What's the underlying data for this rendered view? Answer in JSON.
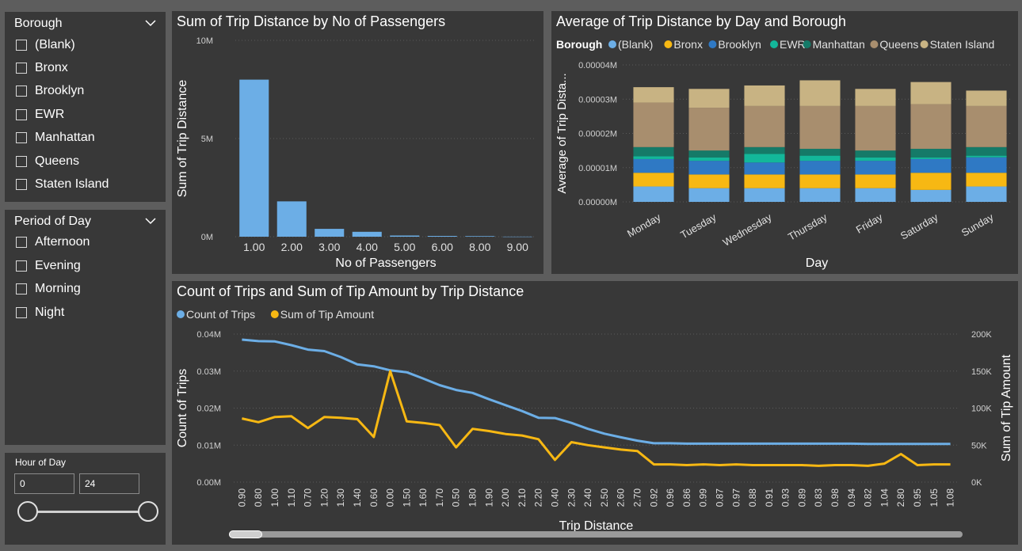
{
  "borough_slicer": {
    "title": "Borough",
    "items": [
      "(Blank)",
      "Bronx",
      "Brooklyn",
      "EWR",
      "Manhattan",
      "Queens",
      "Staten Island"
    ]
  },
  "period_slicer": {
    "title": "Period of Day",
    "items": [
      "Afternoon",
      "Evening",
      "Morning",
      "Night"
    ]
  },
  "hour_slicer": {
    "title": "Hour of Day",
    "min_value": "0",
    "max_value": "24",
    "range": [
      0,
      24
    ]
  },
  "chart_data": [
    {
      "type": "bar",
      "title": "Sum of Trip Distance by No of Passengers",
      "xlabel": "No of Passengers",
      "ylabel": "Sum of Trip Distance",
      "categories": [
        "1.00",
        "2.00",
        "3.00",
        "4.00",
        "5.00",
        "6.00",
        "8.00",
        "9.00"
      ],
      "values": [
        8000000,
        1800000,
        400000,
        250000,
        60000,
        40000,
        30000,
        5000
      ],
      "y_ticks": [
        "10M",
        "5M",
        "0M"
      ],
      "ylim": [
        0,
        10000000
      ],
      "color": "#6caee6",
      "grid": true
    },
    {
      "type": "bar",
      "stacked": true,
      "title": "Average of Trip Distance by Day and Borough",
      "xlabel": "Day",
      "ylabel": "Average of Trip Dista...",
      "legend_title": "Borough",
      "legend_position": "top-left",
      "categories": [
        "Monday",
        "Tuesday",
        "Wednesday",
        "Thursday",
        "Friday",
        "Saturday",
        "Sunday"
      ],
      "y_ticks": [
        "0.00004M",
        "0.00003M",
        "0.00002M",
        "0.00001M",
        "0.00000M"
      ],
      "ylim": [
        0,
        4e-05
      ],
      "series": [
        {
          "name": "(Blank)",
          "color": "#6caee6",
          "values": [
            4.5e-06,
            4e-06,
            4e-06,
            4e-06,
            4e-06,
            3.5e-06,
            4.5e-06
          ]
        },
        {
          "name": "Bronx",
          "color": "#f7b813",
          "values": [
            4e-06,
            4e-06,
            4e-06,
            4e-06,
            4e-06,
            5e-06,
            4e-06
          ]
        },
        {
          "name": "Brooklyn",
          "color": "#2f79c4",
          "values": [
            4e-06,
            4e-06,
            3.5e-06,
            4e-06,
            4e-06,
            4e-06,
            4.5e-06
          ]
        },
        {
          "name": "EWR",
          "color": "#13b79a",
          "values": [
            8e-07,
            1e-06,
            2.5e-06,
            1.5e-06,
            1e-06,
            5e-07,
            5e-07
          ]
        },
        {
          "name": "Manhattan",
          "color": "#157a68",
          "values": [
            2.7e-06,
            2e-06,
            2e-06,
            2e-06,
            2e-06,
            2.5e-06,
            2.5e-06
          ]
        },
        {
          "name": "Queens",
          "color": "#a88e6e",
          "values": [
            1.3e-05,
            1.25e-05,
            1.2e-05,
            1.25e-05,
            1.3e-05,
            1.3e-05,
            1.2e-05
          ]
        },
        {
          "name": "Staten Island",
          "color": "#c8b383",
          "values": [
            4.5e-06,
            5.5e-06,
            6e-06,
            7.5e-06,
            5e-06,
            6.5e-06,
            4.5e-06
          ]
        }
      ],
      "grid": true
    },
    {
      "type": "line",
      "title": "Count of Trips and Sum of Tip Amount by Trip Distance",
      "xlabel": "Trip Distance",
      "ylabel": "Count of Trips",
      "y2label": "Sum of Tip Amount",
      "legend_position": "top-left",
      "categories": [
        "0.90",
        "0.80",
        "1.00",
        "1.10",
        "0.70",
        "1.20",
        "1.30",
        "1.40",
        "0.60",
        "0.00",
        "1.50",
        "1.60",
        "1.70",
        "0.50",
        "1.80",
        "1.90",
        "2.00",
        "2.10",
        "2.20",
        "0.40",
        "2.30",
        "2.40",
        "2.50",
        "2.60",
        "2.70",
        "0.92",
        "0.96",
        "0.86",
        "0.99",
        "0.87",
        "0.97",
        "0.88",
        "0.91",
        "0.93",
        "0.89",
        "0.83",
        "0.98",
        "0.94",
        "0.82",
        "1.04",
        "2.80",
        "0.95",
        "1.05",
        "1.08"
      ],
      "y_ticks": [
        "0.04M",
        "0.03M",
        "0.02M",
        "0.01M",
        "0.00M"
      ],
      "ylim": [
        0,
        0.04
      ],
      "y2_ticks": [
        "200K",
        "150K",
        "100K",
        "50K",
        "0K"
      ],
      "y2lim": [
        0,
        200000
      ],
      "series": [
        {
          "name": "Count of Trips",
          "axis": "left",
          "color": "#6caee6",
          "values": [
            0.0385,
            0.0381,
            0.038,
            0.037,
            0.0358,
            0.0354,
            0.0338,
            0.0318,
            0.0313,
            0.0302,
            0.0297,
            0.028,
            0.0262,
            0.0249,
            0.0241,
            0.0224,
            0.0208,
            0.0192,
            0.0174,
            0.0173,
            0.016,
            0.0144,
            0.0131,
            0.0121,
            0.0112,
            0.0105,
            0.0105,
            0.0104,
            0.0104,
            0.0104,
            0.0104,
            0.0104,
            0.0104,
            0.0104,
            0.0104,
            0.0104,
            0.0104,
            0.0104,
            0.0103,
            0.0103,
            0.0103,
            0.0103,
            0.0103,
            0.0103
          ]
        },
        {
          "name": "Sum of Tip Amount",
          "axis": "right",
          "color": "#f7b813",
          "values": [
            86000,
            81000,
            88000,
            89000,
            73000,
            88000,
            87000,
            85000,
            61000,
            150000,
            82000,
            80000,
            77000,
            47000,
            72000,
            69000,
            65000,
            63000,
            58000,
            30000,
            54000,
            50000,
            47000,
            44000,
            42000,
            24000,
            24000,
            23000,
            24000,
            23000,
            24000,
            23000,
            23000,
            23000,
            23000,
            22000,
            23000,
            23000,
            22000,
            25000,
            38000,
            23000,
            24000,
            24000
          ]
        }
      ],
      "grid": true
    }
  ]
}
